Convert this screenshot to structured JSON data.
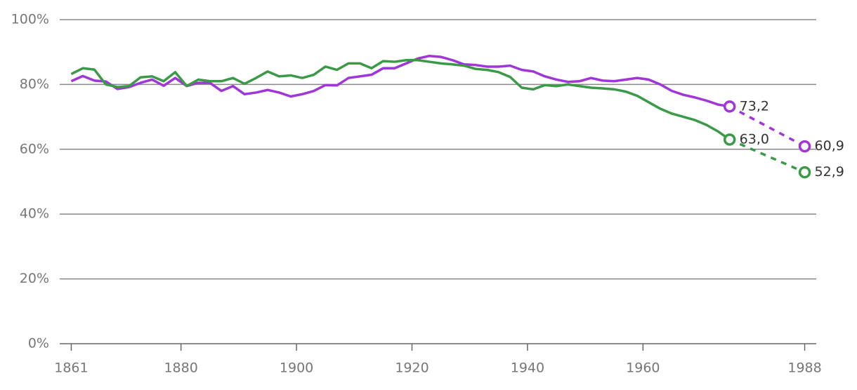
{
  "chart_data": {
    "type": "line",
    "x": [
      1861,
      1863,
      1865,
      1867,
      1869,
      1871,
      1873,
      1875,
      1877,
      1879,
      1881,
      1883,
      1885,
      1887,
      1889,
      1891,
      1893,
      1895,
      1897,
      1899,
      1901,
      1903,
      1905,
      1907,
      1909,
      1911,
      1913,
      1915,
      1917,
      1919,
      1921,
      1923,
      1925,
      1927,
      1929,
      1931,
      1933,
      1935,
      1937,
      1939,
      1941,
      1943,
      1945,
      1947,
      1949,
      1951,
      1953,
      1955,
      1957,
      1959,
      1961,
      1963,
      1965,
      1967,
      1969,
      1971,
      1973,
      1975
    ],
    "series": [
      {
        "color": "#a035d8",
        "values": [
          81.0,
          82.6,
          81.2,
          80.9,
          78.6,
          79.2,
          80.5,
          81.5,
          79.6,
          82.0,
          79.5,
          80.5,
          80.5,
          78.0,
          79.5,
          77.0,
          77.5,
          78.3,
          77.5,
          76.3,
          77.0,
          78.0,
          79.8,
          79.7,
          82.0,
          82.5,
          83.0,
          85.0,
          85.0,
          86.5,
          88.0,
          88.8,
          88.5,
          87.5,
          86.2,
          86.0,
          85.5,
          85.5,
          85.8,
          84.5,
          84.0,
          82.5,
          81.5,
          80.8,
          81.0,
          82.0,
          81.2,
          81.0,
          81.5,
          82.0,
          81.5,
          80.0,
          78.0,
          76.8,
          76.0,
          75.0,
          73.8,
          73.2
        ]
      },
      {
        "color": "#3a9a48",
        "values": [
          83.2,
          85.0,
          84.6,
          80.0,
          79.2,
          79.5,
          82.2,
          82.5,
          81.0,
          83.8,
          79.5,
          81.5,
          81.0,
          81.0,
          82.0,
          80.2,
          82.0,
          84.0,
          82.5,
          82.8,
          82.0,
          83.0,
          85.5,
          84.5,
          86.5,
          86.5,
          85.0,
          87.2,
          87.0,
          87.5,
          87.5,
          87.0,
          86.5,
          86.2,
          85.8,
          84.8,
          84.5,
          83.8,
          82.3,
          79.0,
          78.5,
          79.8,
          79.5,
          80.0,
          79.5,
          79.0,
          78.8,
          78.5,
          77.8,
          76.5,
          74.5,
          72.5,
          71.0,
          70.0,
          69.0,
          67.5,
          65.5,
          63.0
        ]
      },
      {
        "color": "#a035d8",
        "dashed": true,
        "markers": true,
        "x": [
          1975,
          1988
        ],
        "values": [
          73.2,
          60.9
        ],
        "value_labels": [
          "73,2",
          "60,9"
        ]
      },
      {
        "color": "#3a9a48",
        "dashed": true,
        "markers": true,
        "x": [
          1975,
          1988
        ],
        "values": [
          63.0,
          52.9
        ],
        "value_labels": [
          "63,0",
          "52,9"
        ]
      }
    ],
    "xlim": [
      1859,
      1990
    ],
    "xticks": [
      1861,
      1880,
      1900,
      1920,
      1940,
      1960,
      1988
    ],
    "ylim": [
      0,
      100
    ],
    "yticks": [
      {
        "value": 0,
        "label": "0%"
      },
      {
        "value": 20,
        "label": "20%"
      },
      {
        "value": 40,
        "label": "40%"
      },
      {
        "value": 60,
        "label": "60%"
      },
      {
        "value": 80,
        "label": "80%"
      },
      {
        "value": 100,
        "label": "100%"
      }
    ],
    "grid": true
  }
}
